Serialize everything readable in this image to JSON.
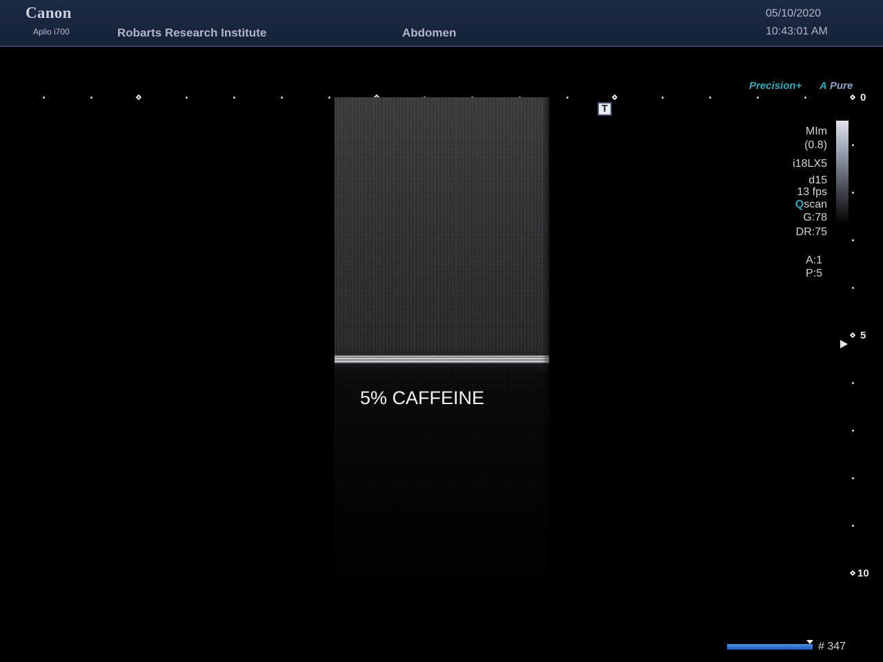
{
  "header": {
    "brand": "Canon",
    "model": "Aplio i700",
    "institution": "Robarts Research Institute",
    "preset": "Abdomen",
    "date": "05/10/2020",
    "time": "10:43:01 AM"
  },
  "image": {
    "sample_label": "5% CAFFEINE"
  },
  "badges": {
    "precision": "Precision+",
    "apure_a": "A",
    "apure": "Pure",
    "t_marker": "T"
  },
  "parameters": {
    "mode": "MIm",
    "mode_value": "(0.8)",
    "transducer": "i18LX5",
    "depth_setting": "d15",
    "frame_rate": "13 fps",
    "qscan_q": "Q",
    "qscan": "scan",
    "gain": "G:78",
    "dynamic_range": "DR:75",
    "acoustic_power": "A:1",
    "persistence": "P:5"
  },
  "depth_scale": {
    "labels": [
      "0",
      "5",
      "10"
    ]
  },
  "cine": {
    "frame_count": "# 347"
  },
  "icons": {
    "focus": "focus-triangle-icon",
    "cine_position": "cine-position-marker-icon"
  }
}
